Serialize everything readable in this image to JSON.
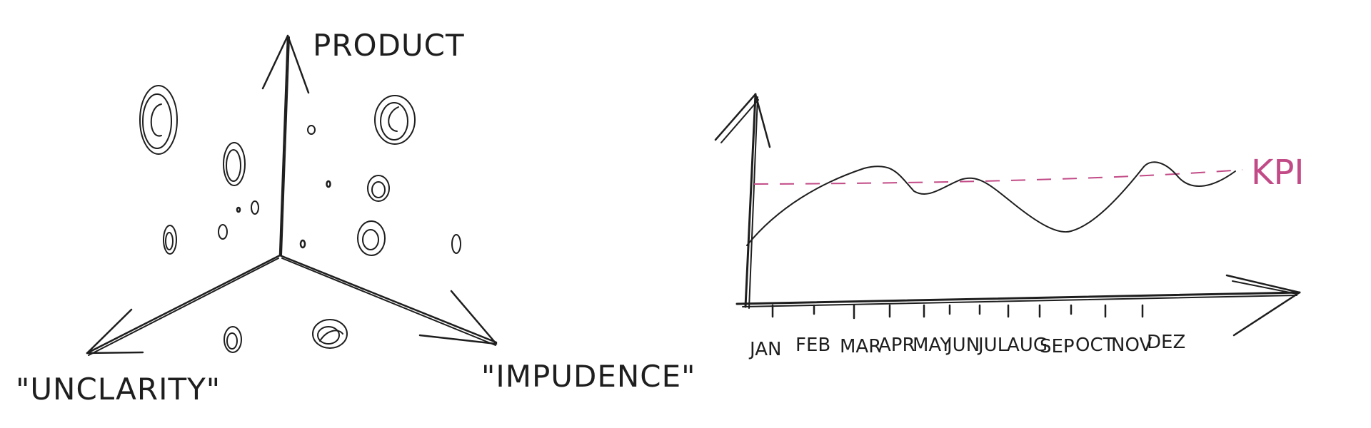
{
  "colors": {
    "ink": "#1e1e1e",
    "kpi": "#c24a86",
    "background": "#ffffff"
  },
  "scatter_sketch": {
    "axes": {
      "up": "PRODUCT",
      "left": "\"UNCLARITY\"",
      "right": "\"IMPUDENCE\""
    }
  },
  "line_sketch": {
    "months": [
      "JAN",
      "FEB",
      "MAR",
      "APR",
      "MAY",
      "JUN",
      "JUL",
      "AUG",
      "SEP",
      "OCT",
      "NOV",
      "DEZ"
    ],
    "kpi_label": "KPI"
  }
}
